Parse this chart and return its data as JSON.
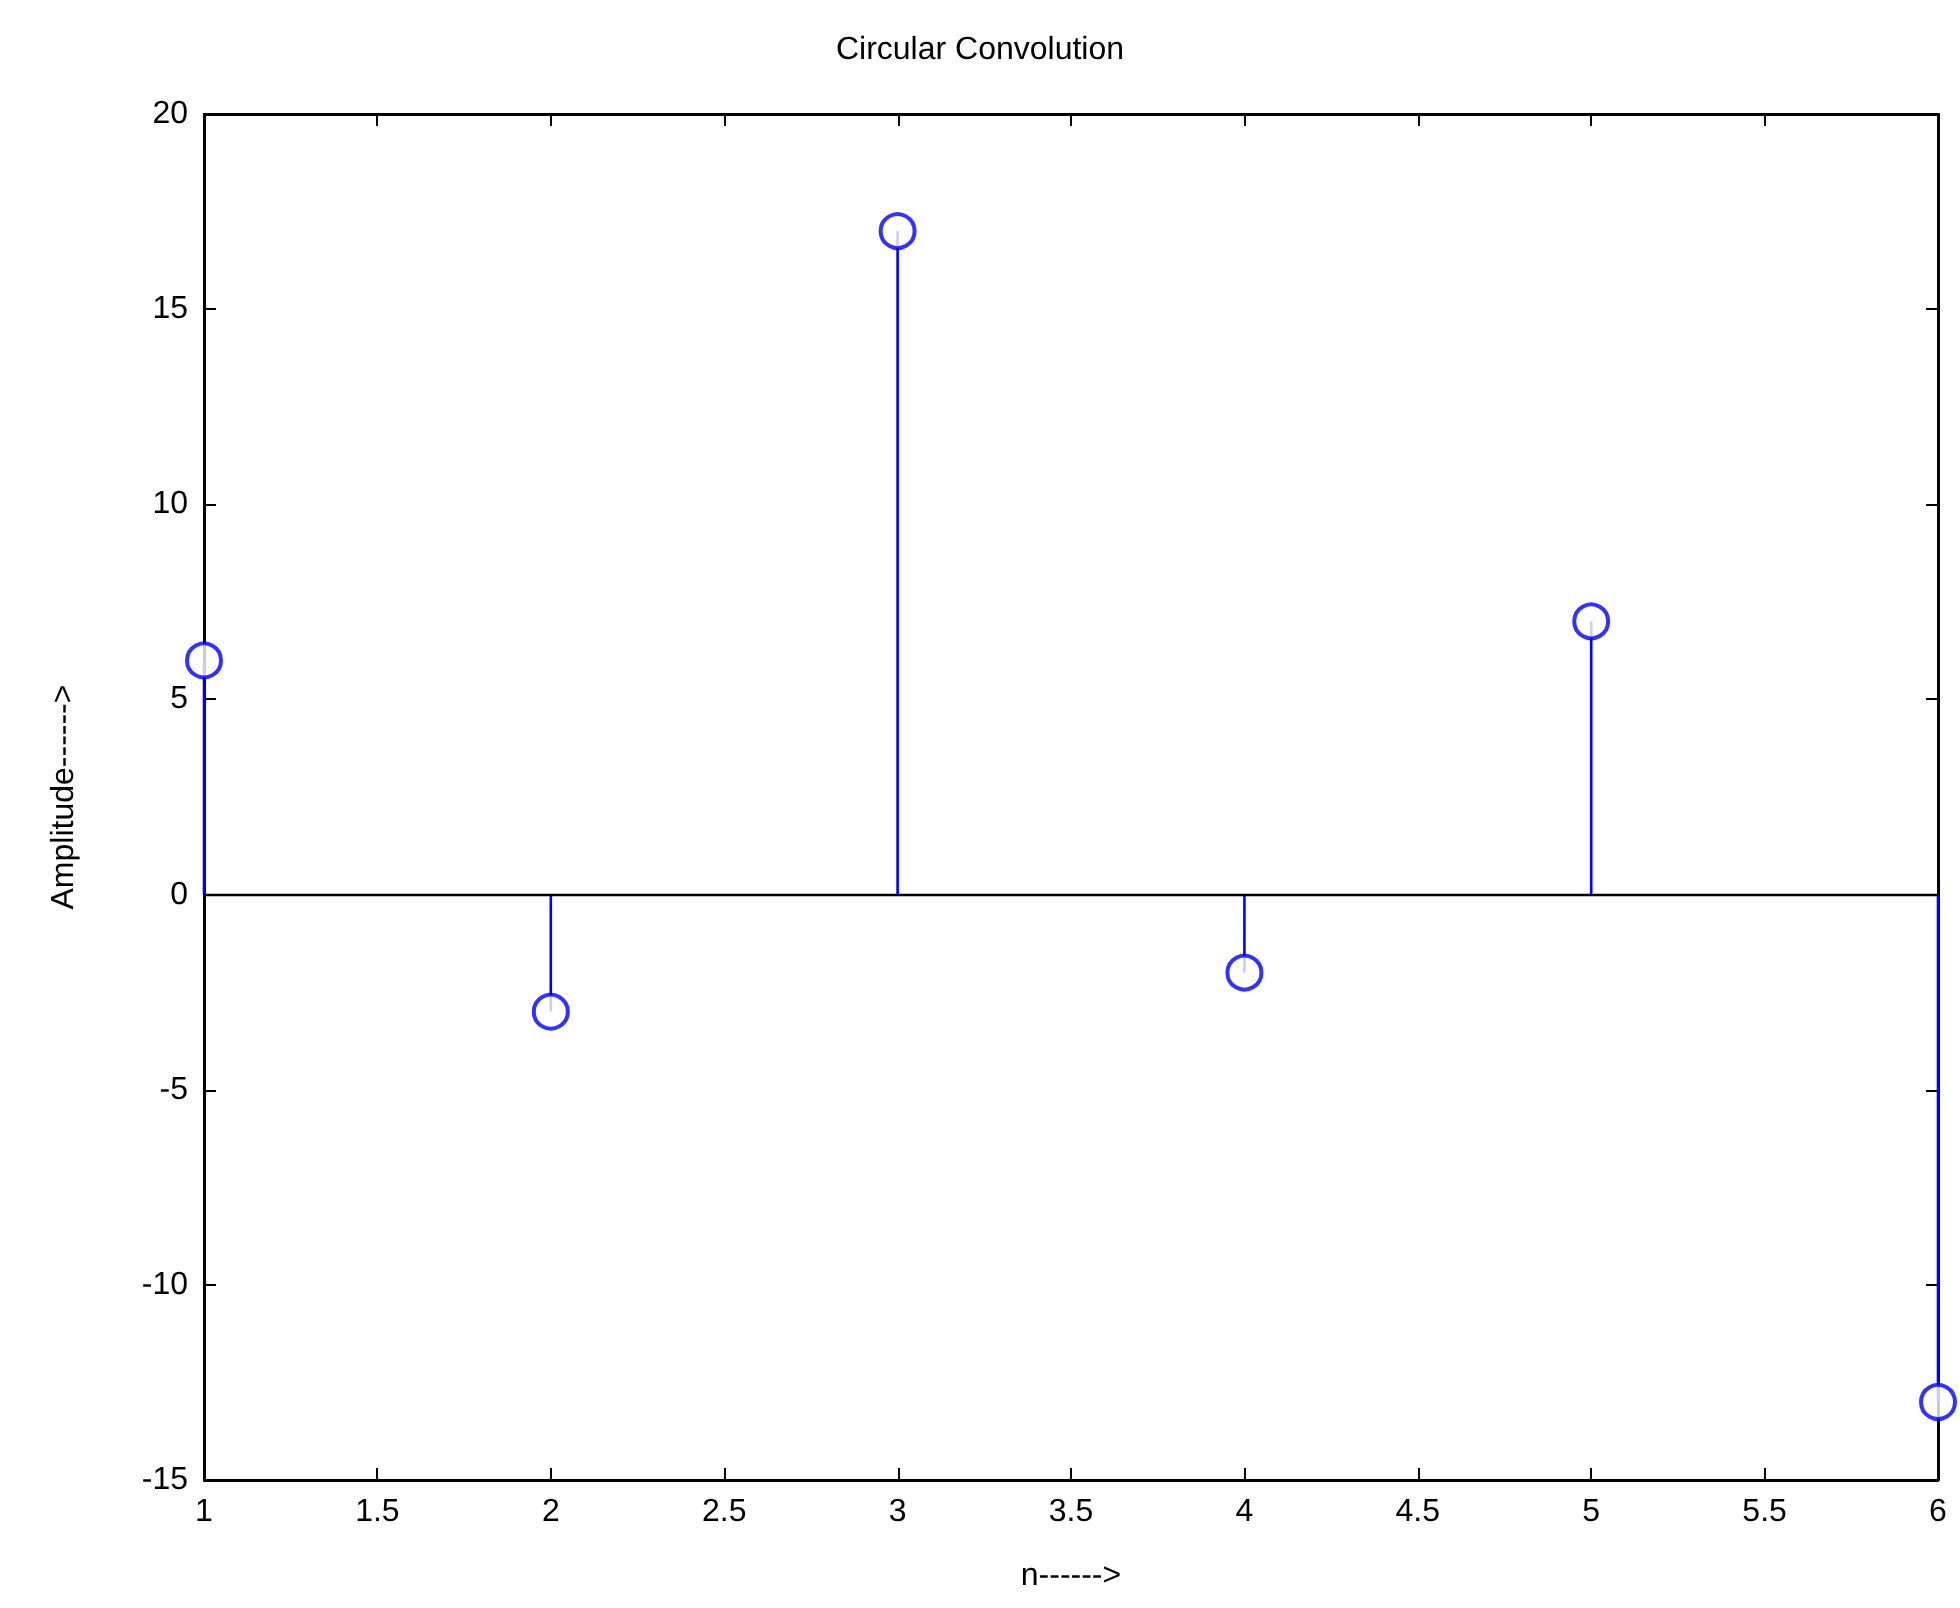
{
  "chart_data": {
    "type": "lollipop",
    "title": "Circular Convolution",
    "xlabel": "n------>",
    "ylabel": "Amplitude------>",
    "x": [
      1,
      2,
      3,
      4,
      5,
      6
    ],
    "series": [
      {
        "color": "#0000ff",
        "values": [
          6,
          -3,
          17,
          -2,
          7,
          -13
        ]
      }
    ],
    "xlim": [
      1,
      6
    ],
    "xticks": [
      1,
      1.5,
      2,
      2.5,
      3,
      3.5,
      4,
      4.5,
      5,
      5.5,
      6
    ],
    "ylim": [
      -15,
      20
    ],
    "yticks": [
      -15,
      -10,
      -5,
      0,
      5,
      10,
      15,
      20
    ],
    "ref_lines": [
      {
        "axis": "y",
        "value": 0,
        "color": "#000000",
        "line_style": "solid"
      }
    ],
    "grid": false,
    "marker": "circle",
    "line_style": "solid"
  }
}
